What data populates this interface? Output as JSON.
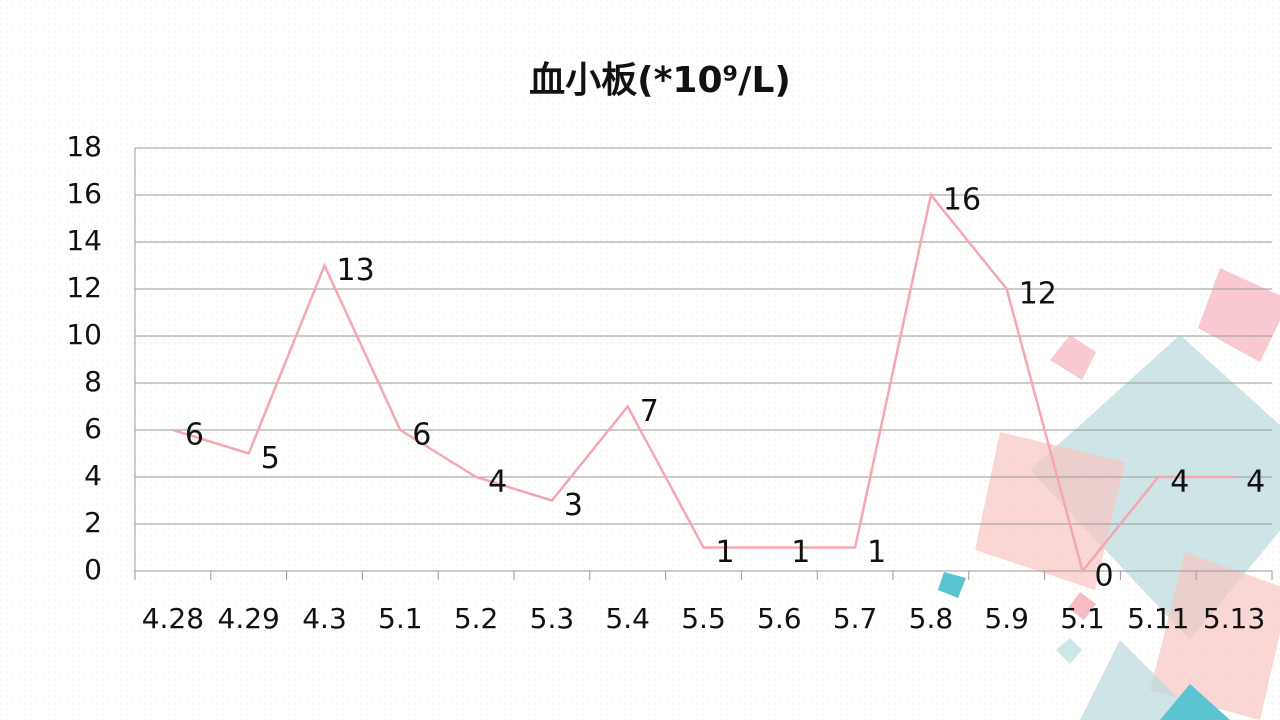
{
  "chart_data": {
    "type": "line",
    "title": "血小板(*10⁹/L)",
    "categories": [
      "4.28",
      "4.29",
      "4.3",
      "5.1",
      "5.2",
      "5.3",
      "5.4",
      "5.5",
      "5.6",
      "5.7",
      "5.8",
      "5.9",
      "5.1",
      "5.11",
      "5.13"
    ],
    "values": [
      6,
      5,
      13,
      6,
      4,
      3,
      7,
      1,
      1,
      1,
      16,
      12,
      0,
      4,
      4
    ],
    "color": "#f4a7b0",
    "ylim": [
      0,
      18
    ],
    "yticks": [
      0,
      2,
      4,
      6,
      8,
      10,
      12,
      14,
      16,
      18
    ],
    "grid": true
  }
}
